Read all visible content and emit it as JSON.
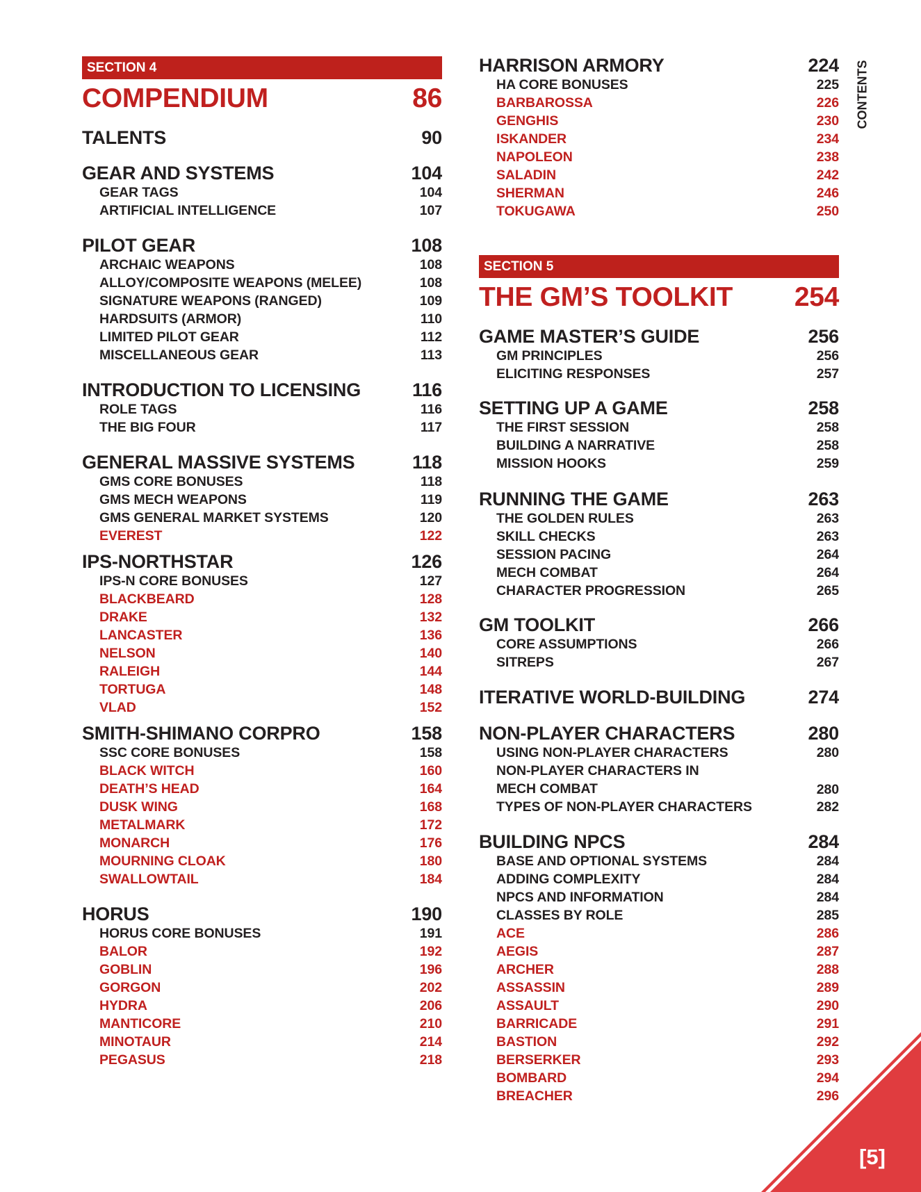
{
  "side_label": "CONTENTS",
  "page_number": "[5]",
  "colors": {
    "section_red": "#be211c",
    "frame_red": "#c0201f",
    "corner_red": "#e03c3f",
    "text": "#231f20"
  },
  "left": {
    "section": {
      "label": "SECTION 4",
      "title": "COMPENDIUM",
      "page": "86"
    },
    "groups": [
      {
        "title": "TALENTS",
        "page": "90",
        "items": []
      },
      {
        "title": "GEAR AND SYSTEMS",
        "page": "104",
        "items": [
          {
            "label": "GEAR TAGS",
            "page": "104"
          },
          {
            "label": "ARTIFICIAL INTELLIGENCE",
            "page": "107"
          }
        ]
      },
      {
        "title": "PILOT GEAR",
        "page": "108",
        "items": [
          {
            "label": "ARCHAIC WEAPONS",
            "page": "108"
          },
          {
            "label": "ALLOY/COMPOSITE WEAPONS (MELEE)",
            "page": "108"
          },
          {
            "label": "SIGNATURE WEAPONS (RANGED)",
            "page": "109"
          },
          {
            "label": "HARDSUITS (ARMOR)",
            "page": "110"
          },
          {
            "label": "LIMITED PILOT GEAR",
            "page": "112"
          },
          {
            "label": "MISCELLANEOUS GEAR",
            "page": "113"
          }
        ]
      },
      {
        "title": "INTRODUCTION TO LICENSING",
        "page": "116",
        "items": [
          {
            "label": "ROLE TAGS",
            "page": "116"
          },
          {
            "label": "THE BIG FOUR",
            "page": "117"
          }
        ]
      },
      {
        "title": "GENERAL MASSIVE SYSTEMS",
        "page": "118",
        "items": [
          {
            "label": "GMS CORE BONUSES",
            "page": "118"
          },
          {
            "label": "GMS MECH WEAPONS",
            "page": "119"
          },
          {
            "label": "GMS GENERAL MARKET SYSTEMS",
            "page": "120"
          },
          {
            "label": "EVEREST",
            "page": "122",
            "frame": true
          }
        ]
      },
      {
        "title": "IPS-NORTHSTAR",
        "page": "126",
        "items": [
          {
            "label": "IPS-N CORE BONUSES",
            "page": "127"
          },
          {
            "label": "BLACKBEARD",
            "page": "128",
            "frame": true
          },
          {
            "label": "DRAKE",
            "page": "132",
            "frame": true
          },
          {
            "label": "LANCASTER",
            "page": "136",
            "frame": true
          },
          {
            "label": "NELSON",
            "page": "140",
            "frame": true
          },
          {
            "label": "RALEIGH",
            "page": "144",
            "frame": true
          },
          {
            "label": "TORTUGA",
            "page": "148",
            "frame": true
          },
          {
            "label": "VLAD",
            "page": "152",
            "frame": true
          }
        ]
      },
      {
        "title": "SMITH-SHIMANO CORPRO",
        "page": "158",
        "items": [
          {
            "label": "SSC CORE BONUSES",
            "page": "158"
          },
          {
            "label": "BLACK WITCH",
            "page": "160",
            "frame": true
          },
          {
            "label": "DEATH’S HEAD",
            "page": "164",
            "frame": true
          },
          {
            "label": "DUSK WING",
            "page": "168",
            "frame": true
          },
          {
            "label": "METALMARK",
            "page": "172",
            "frame": true
          },
          {
            "label": "MONARCH",
            "page": "176",
            "frame": true
          },
          {
            "label": "MOURNING CLOAK",
            "page": "180",
            "frame": true
          },
          {
            "label": "SWALLOWTAIL",
            "page": "184",
            "frame": true
          }
        ]
      },
      {
        "title": "HORUS",
        "page": "190",
        "items": [
          {
            "label": "HORUS CORE BONUSES",
            "page": "191"
          },
          {
            "label": "BALOR",
            "page": "192",
            "frame": true
          },
          {
            "label": "GOBLIN",
            "page": "196",
            "frame": true
          },
          {
            "label": "GORGON",
            "page": "202",
            "frame": true
          },
          {
            "label": "HYDRA",
            "page": "206",
            "frame": true
          },
          {
            "label": "MANTICORE",
            "page": "210",
            "frame": true
          },
          {
            "label": "MINOTAUR",
            "page": "214",
            "frame": true
          },
          {
            "label": "PEGASUS",
            "page": "218",
            "frame": true
          }
        ]
      }
    ]
  },
  "right": {
    "groups_before": [
      {
        "title": "HARRISON ARMORY",
        "page": "224",
        "items": [
          {
            "label": "HA CORE BONUSES",
            "page": "225"
          },
          {
            "label": "BARBAROSSA",
            "page": "226",
            "frame": true
          },
          {
            "label": "GENGHIS",
            "page": "230",
            "frame": true
          },
          {
            "label": "ISKANDER",
            "page": "234",
            "frame": true
          },
          {
            "label": "NAPOLEON",
            "page": "238",
            "frame": true
          },
          {
            "label": "SALADIN",
            "page": "242",
            "frame": true
          },
          {
            "label": "SHERMAN",
            "page": "246",
            "frame": true
          },
          {
            "label": "TOKUGAWA",
            "page": "250",
            "frame": true
          }
        ]
      }
    ],
    "section": {
      "label": "SECTION 5",
      "title": "THE GM’S TOOLKIT",
      "page": "254"
    },
    "groups": [
      {
        "title": "GAME MASTER’S GUIDE",
        "page": "256",
        "items": [
          {
            "label": "GM PRINCIPLES",
            "page": "256"
          },
          {
            "label": "ELICITING RESPONSES",
            "page": "257"
          }
        ]
      },
      {
        "title": "SETTING UP A GAME",
        "page": "258",
        "items": [
          {
            "label": "THE FIRST SESSION",
            "page": "258"
          },
          {
            "label": "BUILDING A NARRATIVE",
            "page": "258"
          },
          {
            "label": "MISSION HOOKS",
            "page": "259"
          }
        ]
      },
      {
        "title": "RUNNING THE GAME",
        "page": "263",
        "items": [
          {
            "label": "THE GOLDEN RULES",
            "page": "263"
          },
          {
            "label": "SKILL CHECKS",
            "page": "263"
          },
          {
            "label": "SESSION PACING",
            "page": "264"
          },
          {
            "label": "MECH COMBAT",
            "page": "264"
          },
          {
            "label": "CHARACTER PROGRESSION",
            "page": "265"
          }
        ]
      },
      {
        "title": "GM TOOLKIT",
        "page": "266",
        "items": [
          {
            "label": "CORE ASSUMPTIONS",
            "page": "266"
          },
          {
            "label": "SITREPS",
            "page": "267"
          }
        ]
      },
      {
        "title": "ITERATIVE WORLD-BUILDING",
        "page": "274",
        "items": []
      },
      {
        "title": "NON-PLAYER CHARACTERS",
        "page": "280",
        "items": [
          {
            "label": "USING NON-PLAYER CHARACTERS",
            "page": "280"
          },
          {
            "label": "NON-PLAYER CHARACTERS IN\nMECH COMBAT",
            "page": "280"
          },
          {
            "label": "TYPES OF NON-PLAYER CHARACTERS",
            "page": "282"
          }
        ]
      },
      {
        "title": "BUILDING NPCS",
        "page": "284",
        "items": [
          {
            "label": "BASE AND OPTIONAL SYSTEMS",
            "page": "284"
          },
          {
            "label": "ADDING COMPLEXITY",
            "page": "284"
          },
          {
            "label": "NPCS AND INFORMATION",
            "page": "284"
          },
          {
            "label": "CLASSES BY ROLE",
            "page": "285"
          },
          {
            "label": "ACE",
            "page": "286",
            "frame": true
          },
          {
            "label": "AEGIS",
            "page": "287",
            "frame": true
          },
          {
            "label": "ARCHER",
            "page": "288",
            "frame": true
          },
          {
            "label": "ASSASSIN",
            "page": "289",
            "frame": true
          },
          {
            "label": "ASSAULT",
            "page": "290",
            "frame": true
          },
          {
            "label": "BARRICADE",
            "page": "291",
            "frame": true
          },
          {
            "label": "BASTION",
            "page": "292",
            "frame": true
          },
          {
            "label": "BERSERKER",
            "page": "293",
            "frame": true
          },
          {
            "label": "BOMBARD",
            "page": "294",
            "frame": true
          },
          {
            "label": "BREACHER",
            "page": "296",
            "frame": true
          }
        ]
      }
    ]
  }
}
